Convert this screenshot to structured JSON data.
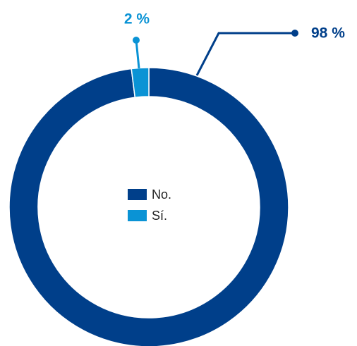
{
  "chart_data": {
    "type": "donut",
    "categories": [
      "No.",
      "Sí."
    ],
    "values": [
      98,
      2
    ],
    "value_labels": [
      "98 %",
      "2 %"
    ],
    "colors": [
      "#003f8a",
      "#0a93d5"
    ],
    "legend": "center"
  }
}
